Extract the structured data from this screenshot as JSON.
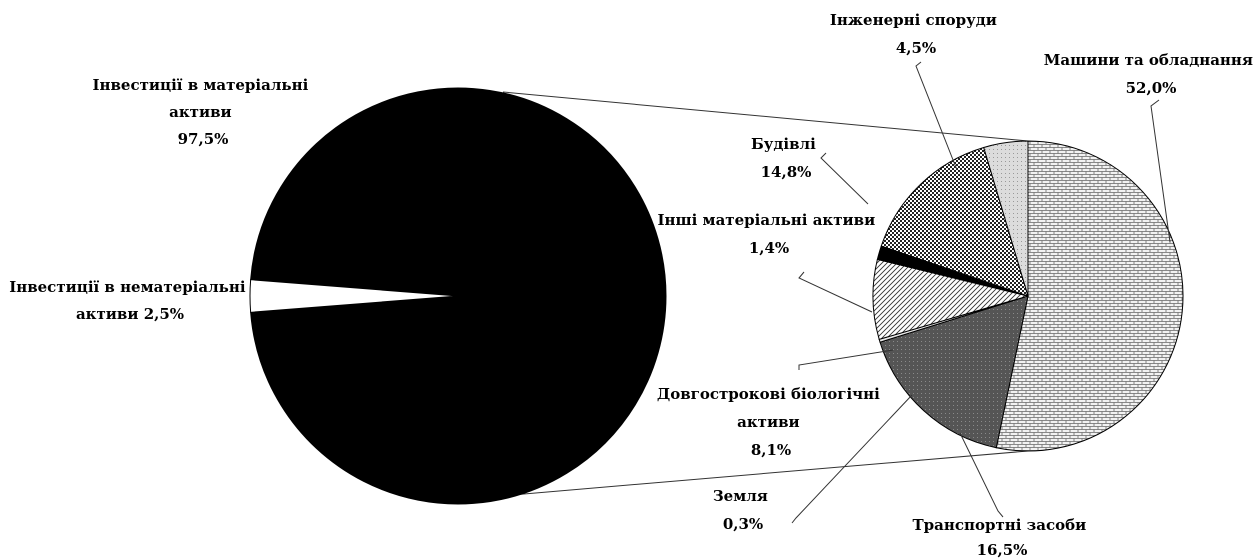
{
  "chart_data": [
    {
      "type": "pie",
      "title": "",
      "slices": [
        {
          "label": "Інвестиції в матеріальні активи",
          "label_lines": [
            "Інвестиції в матеріальні",
            "активи",
            "97,5%"
          ],
          "value": 97.5,
          "color": "#000000"
        },
        {
          "label": "Інвестиції в нематеріальні активи",
          "label_lines": [
            "Інвестиції в нематеріальні",
            "активи 2,5%"
          ],
          "value": 2.5,
          "color": "#ffffff"
        }
      ]
    },
    {
      "type": "pie",
      "title": "",
      "slices": [
        {
          "label": "Машини та обладнання",
          "label_lines": [
            "Машини та обладнання",
            "52,0%"
          ],
          "value": 52.0,
          "pattern": "brick"
        },
        {
          "label": "Транспортні засоби",
          "label_lines": [
            "Транспортні засоби",
            "16,5%"
          ],
          "value": 16.5,
          "pattern": "dark-dots"
        },
        {
          "label": "Земля",
          "label_lines": [
            "Земля",
            "0,3%"
          ],
          "value": 0.3,
          "pattern": "light"
        },
        {
          "label": "Довгострокові біологічні активи",
          "label_lines": [
            "Довгострокові біологічні",
            "активи",
            "8,1%"
          ],
          "value": 8.1,
          "pattern": "diagonal"
        },
        {
          "label": "Інші матеріальні активи",
          "label_lines": [
            "Інші матеріальні активи",
            "1,4%"
          ],
          "value": 1.4,
          "pattern": "solid-black"
        },
        {
          "label": "Будівлі",
          "label_lines": [
            "Будівлі",
            "14,8%"
          ],
          "value": 14.8,
          "pattern": "checker"
        },
        {
          "label": "Інженерні споруди",
          "label_lines": [
            "Інженерні споруди",
            "4,5%"
          ],
          "value": 4.5,
          "pattern": "light-dots"
        }
      ]
    }
  ]
}
